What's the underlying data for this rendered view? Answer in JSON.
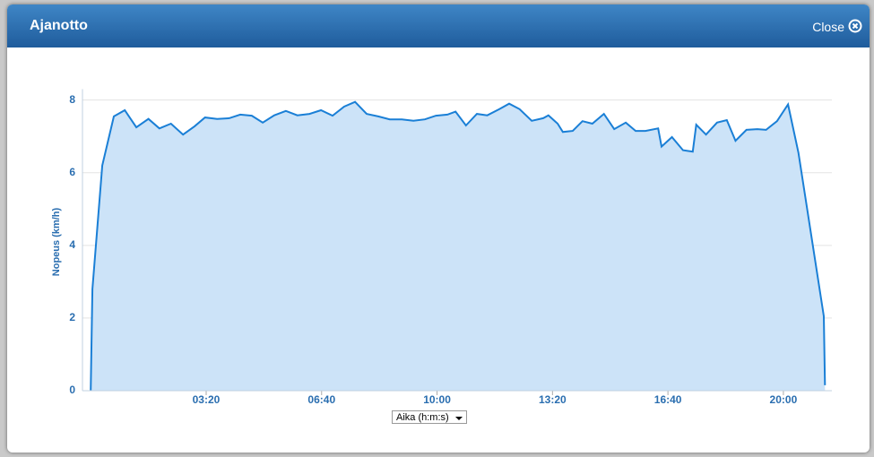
{
  "dialog": {
    "title": "Ajanotto",
    "close": "Close"
  },
  "x_selector": "Aika (h:m:s)",
  "chart_data": {
    "type": "area",
    "y_label": "Nopeus (km/h)",
    "x": [
      0,
      3,
      20,
      40,
      59,
      79,
      100,
      119,
      139,
      160,
      180,
      198,
      219,
      240,
      259,
      279,
      298,
      318,
      338,
      358,
      379,
      399,
      419,
      439,
      458,
      478,
      498,
      518,
      539,
      559,
      579,
      598,
      618,
      632,
      650,
      669,
      687,
      708,
      725,
      743,
      764,
      784,
      793,
      809,
      818,
      835,
      852,
      869,
      889,
      907,
      927,
      944,
      961,
      983,
      989,
      1007,
      1026,
      1043,
      1049,
      1066,
      1085,
      1102,
      1117,
      1136,
      1155,
      1170,
      1189,
      1208,
      1226,
      1270,
      1272
    ],
    "series": [
      {
        "name": "Nopeus",
        "color": "#1a7fd6",
        "fill": "#cce3f8",
        "values": [
          0,
          2.8,
          6.2,
          7.55,
          7.72,
          7.25,
          7.48,
          7.22,
          7.35,
          7.05,
          7.28,
          7.52,
          7.48,
          7.5,
          7.6,
          7.57,
          7.38,
          7.58,
          7.7,
          7.58,
          7.62,
          7.72,
          7.57,
          7.82,
          7.95,
          7.62,
          7.55,
          7.47,
          7.47,
          7.43,
          7.47,
          7.57,
          7.6,
          7.68,
          7.3,
          7.62,
          7.58,
          7.75,
          7.9,
          7.75,
          7.43,
          7.5,
          7.58,
          7.35,
          7.12,
          7.15,
          7.42,
          7.35,
          7.62,
          7.2,
          7.38,
          7.15,
          7.15,
          7.22,
          6.72,
          6.98,
          6.62,
          6.58,
          7.32,
          7.05,
          7.38,
          7.45,
          6.88,
          7.18,
          7.2,
          7.18,
          7.42,
          7.88,
          6.55,
          2.05,
          0.15
        ]
      }
    ],
    "xlim": [
      -14.3,
      1284
    ],
    "xticks": [
      {
        "value": 200,
        "label": "03:20"
      },
      {
        "value": 400,
        "label": "06:40"
      },
      {
        "value": 600,
        "label": "10:00"
      },
      {
        "value": 800,
        "label": "13:20"
      },
      {
        "value": 1000,
        "label": "16:40"
      },
      {
        "value": 1200,
        "label": "20:00"
      }
    ],
    "ylim": [
      0,
      8.3
    ],
    "yticks": [
      0,
      2,
      4,
      6,
      8
    ],
    "grid": true
  }
}
